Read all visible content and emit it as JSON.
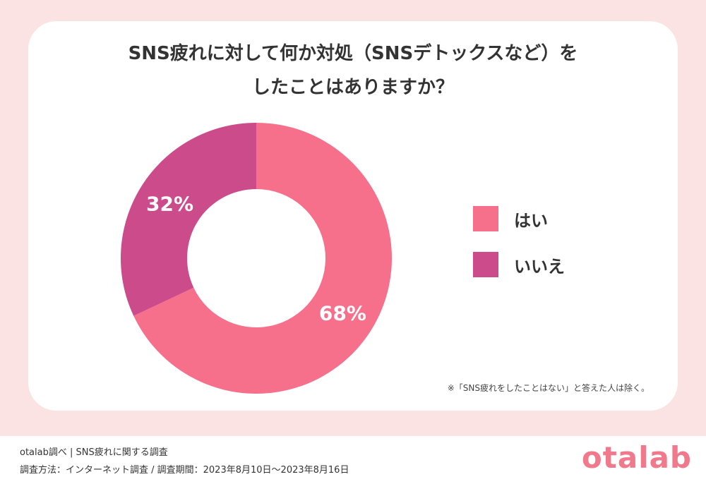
{
  "title": {
    "line1": "SNS疲れに対して何か対処（SNSデトックスなど）を",
    "line2": "したことはありますか？"
  },
  "chart_data": {
    "type": "pie",
    "donut": true,
    "categories": [
      "はい",
      "いいえ"
    ],
    "values": [
      68,
      32
    ],
    "labels": [
      "68%",
      "32%"
    ],
    "colors": [
      "#f7708b",
      "#cc4b8b"
    ],
    "legend_position": "right"
  },
  "note": "※「SNS疲れをしたことはない」と答えた人は除く。",
  "footer": {
    "source": "otalab調べ | SNS疲れに関する調査",
    "method": "調査方法：インターネット調査 / 調査期間：2023年8月10日〜2023年8月16日",
    "brand": "otalab"
  }
}
